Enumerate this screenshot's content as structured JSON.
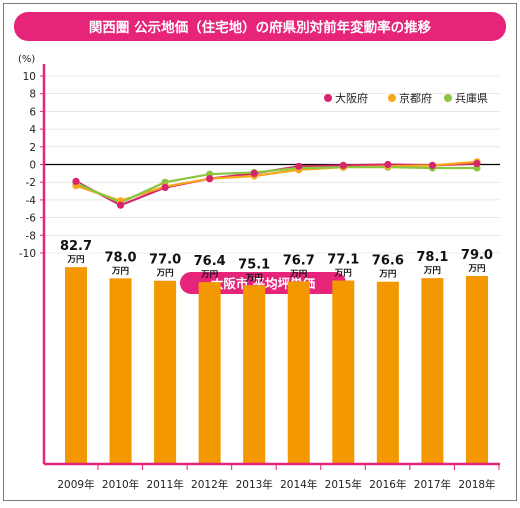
{
  "title": "関西圏 公示地価（住宅地）の府県別対前年変動率の推移",
  "colors": {
    "accent": "#e5247a",
    "osaka": "#d6246e",
    "kyoto": "#f6a71c",
    "hyogo": "#8cc540",
    "bar": "#f39800",
    "axis": "#e5247a"
  },
  "chart_data": [
    {
      "type": "line",
      "ylabel": "(%)",
      "ylim": [
        -10,
        10
      ],
      "yticks": [
        10,
        8,
        6,
        4,
        2,
        0,
        -2,
        -4,
        -6,
        -8,
        -10
      ],
      "x": [
        "2009年",
        "2010年",
        "2011年",
        "2012年",
        "2013年",
        "2014年",
        "2015年",
        "2016年",
        "2017年",
        "2018年"
      ],
      "legend_position": "top-right",
      "series": [
        {
          "name": "大阪府",
          "color": "#d6246e",
          "values": [
            -1.9,
            -4.6,
            -2.6,
            -1.6,
            -1.0,
            -0.2,
            -0.1,
            0.0,
            -0.1,
            0.1
          ]
        },
        {
          "name": "京都府",
          "color": "#f6a71c",
          "values": [
            -2.4,
            -4.1,
            -2.5,
            -1.6,
            -1.3,
            -0.6,
            -0.3,
            -0.2,
            -0.1,
            0.3
          ]
        },
        {
          "name": "兵庫県",
          "color": "#8cc540",
          "values": [
            -2.1,
            -4.3,
            -2.0,
            -1.1,
            -0.9,
            -0.4,
            -0.3,
            -0.3,
            -0.4,
            -0.4
          ]
        }
      ]
    },
    {
      "type": "bar",
      "title": "大阪市 平均坪単価",
      "unit": "万円",
      "categories": [
        "2009年",
        "2010年",
        "2011年",
        "2012年",
        "2013年",
        "2014年",
        "2015年",
        "2016年",
        "2017年",
        "2018年"
      ],
      "values": [
        82.7,
        78.0,
        77.0,
        76.4,
        75.1,
        76.7,
        77.1,
        76.6,
        78.1,
        79.0
      ],
      "labels": [
        "82.7",
        "78.0",
        "77.0",
        "76.4",
        "75.1",
        "76.7",
        "77.1",
        "76.6",
        "78.1",
        "79.0"
      ]
    }
  ]
}
